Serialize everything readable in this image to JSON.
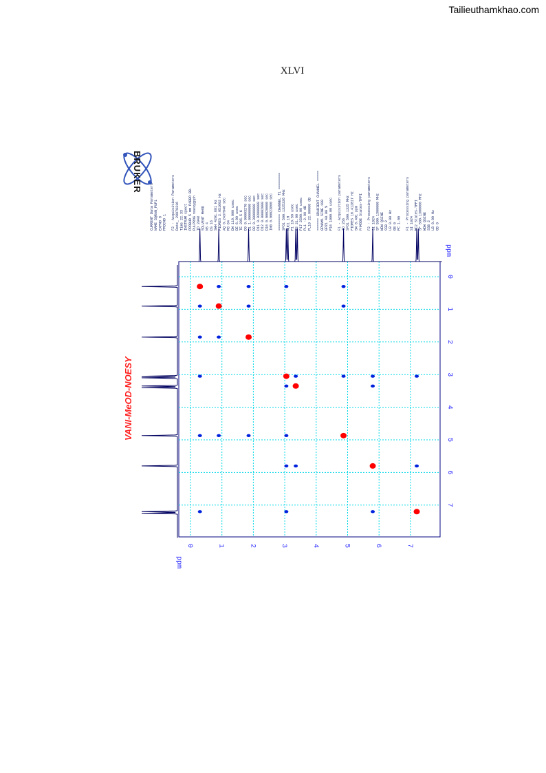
{
  "watermark": "Tailieuthamkhao.com",
  "page_number": "XLVI",
  "logo_text": "BRUKER",
  "spectrum_title": "VANI-MeOD-NOESY",
  "parameters": [
    "CURRENT Data Parameters",
    "NAME      5QRAN_PUP1",
    "EXPNO          8",
    "PROCNO         1",
    "",
    "F2 - Acquisition Parameters",
    "Date_     20070316",
    "Time        22.33",
    "INSTRUM     spect",
    "PROBHD  5 mm PABBO BB-",
    "PULPROG  noesygpph",
    "TD          2048",
    "SOLVENT     MeOD",
    "NS             4",
    "DS            16",
    "SWH     4201.681 Hz",
    "FIDRES  2.051602 Hz",
    "AQ     0.2437940 sec",
    "RG            64",
    "DW       119.000 usec",
    "DE          6.00 usec",
    "TE         295.5 K",
    "D0    0.00003270 sec",
    "D1    1.00000000 sec",
    "D8    0.30000000 sec",
    "D11   0.03000000 sec",
    "D12   0.00002000 sec",
    "D16   0.00020000 sec",
    "IN0   0.00023800 sec",
    "",
    "======== CHANNEL f1 ========",
    "SFO1  500.1325326 MHz",
    "NUC1            1H",
    "P1          10.50 usec",
    "P2          21.00 usec",
    "P17       2500.00 usec",
    "PL1         -2.00 dB",
    "PL10    22.00000 dB",
    "",
    "====== GRADIENT CHANNEL =====",
    "GPNAM1    SINE.100",
    "GPZ1        40.00 %",
    "P16       1000.00 usec",
    "",
    "F1 - Acquisition parameters",
    "TD            256",
    "SFO1     500.1325 MHz",
    "FIDRES  16.412817 Hz",
    "SW         8.401 ppm",
    "FnMODE  States-TPPI",
    "",
    "F2 - Processing parameters",
    "SI          1024",
    "SF    500.1300000 MHz",
    "WDW        QSINE",
    "SSB            2",
    "LB          0.00 Hz",
    "GB             0",
    "PC          1.00",
    "",
    "F1 - Processing parameters",
    "SI          1024",
    "MC2   States-TPPI",
    "SF    500.1300000 MHz",
    "WDW        QSINE",
    "SSB            2",
    "LB          0.00 Hz",
    "GB             0"
  ],
  "chart_data": {
    "type": "scatter",
    "title": "VANI-MeOD-NOESY",
    "x_axis": {
      "label": "ppm",
      "range": [
        -0.3,
        8.0
      ],
      "ticks": [
        "0",
        "1",
        "2",
        "3",
        "4",
        "5",
        "6",
        "7"
      ]
    },
    "y_axis": {
      "label": "ppm",
      "range": [
        -0.3,
        8.0
      ],
      "ticks": [
        "0",
        "1",
        "2",
        "3",
        "4",
        "5",
        "6",
        "7"
      ]
    },
    "grid": true,
    "projection_peaks_ppm": [
      0.3,
      0.9,
      1.85,
      3.05,
      3.1,
      3.35,
      3.4,
      4.87,
      5.8,
      7.2,
      7.25
    ],
    "diagonal_peaks": [
      [
        0.3,
        0.3
      ],
      [
        0.9,
        0.9
      ],
      [
        1.85,
        1.85
      ],
      [
        3.05,
        3.05
      ],
      [
        3.35,
        3.35
      ],
      [
        4.87,
        4.87
      ],
      [
        5.8,
        5.8
      ],
      [
        7.2,
        7.2
      ]
    ],
    "cross_peaks": [
      [
        0.3,
        0.9
      ],
      [
        0.9,
        0.3
      ],
      [
        1.85,
        0.3
      ],
      [
        1.85,
        0.9
      ],
      [
        0.3,
        1.85
      ],
      [
        0.9,
        1.85
      ],
      [
        3.05,
        0.3
      ],
      [
        4.87,
        0.3
      ],
      [
        4.87,
        0.9
      ],
      [
        3.35,
        3.05
      ],
      [
        3.05,
        3.35
      ],
      [
        4.87,
        3.05
      ],
      [
        5.8,
        3.05
      ],
      [
        5.8,
        3.35
      ],
      [
        7.2,
        3.05
      ],
      [
        0.3,
        3.05
      ],
      [
        0.3,
        4.87
      ],
      [
        0.9,
        4.87
      ],
      [
        1.85,
        4.87
      ],
      [
        3.05,
        4.87
      ],
      [
        3.05,
        5.8
      ],
      [
        3.35,
        5.8
      ],
      [
        7.2,
        5.8
      ],
      [
        0.3,
        7.2
      ],
      [
        3.05,
        7.2
      ],
      [
        5.8,
        7.2
      ]
    ],
    "colors": {
      "positive": "#0022dd",
      "diagonal": "#ff0000",
      "grid": "#00d8e8",
      "trace": "#000060"
    }
  }
}
